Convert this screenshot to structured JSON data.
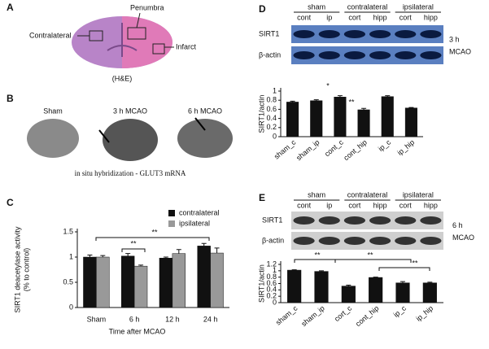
{
  "panel_a": {
    "label": "A",
    "annotations": [
      "Penumbra",
      "Contralateral",
      "Infarct",
      "(H&E)"
    ]
  },
  "panel_b": {
    "label": "B",
    "conditions": [
      "Sham",
      "3 h MCAO",
      "6 h MCAO"
    ],
    "caption": "in situ hybridization - GLUT3 mRNA"
  },
  "blots": [
    {
      "label": "D",
      "groups": [
        "sham",
        "contralateral",
        "ipsilateral"
      ],
      "lanes": [
        "cont",
        "ip",
        "cort",
        "hipp",
        "cort",
        "hipp"
      ],
      "rows": [
        "SIRT1",
        "β-actin"
      ],
      "condition": [
        "3 h",
        "MCAO"
      ]
    },
    {
      "label": "E",
      "groups": [
        "sham",
        "contralateral",
        "ipsilateral"
      ],
      "lanes": [
        "cont",
        "ip",
        "cort",
        "hipp",
        "cort",
        "hipp"
      ],
      "rows": [
        "SIRT1",
        "β-actin"
      ],
      "condition": [
        "6 h",
        "MCAO"
      ]
    }
  ],
  "chart_data": [
    {
      "type": "bar",
      "panel_label": "C",
      "ylabel": [
        "SIRT1 deacetylase activity",
        "(% to control)"
      ],
      "xlabel": "Time after MCAO",
      "categories": [
        "Sham",
        "6 h",
        "12 h",
        "24 h"
      ],
      "series": [
        {
          "name": "contralateral",
          "color": "#111111",
          "values": [
            1.0,
            1.02,
            0.98,
            1.22
          ],
          "errors": [
            0.04,
            0.05,
            0.02,
            0.05
          ]
        },
        {
          "name": "ipsilateral",
          "color": "#999999",
          "values": [
            1.0,
            0.82,
            1.07,
            1.08
          ],
          "errors": [
            0.03,
            0.02,
            0.08,
            0.1
          ]
        }
      ],
      "ylim": [
        0,
        1.5
      ],
      "yticks": [
        0,
        0.5,
        1,
        1.5
      ],
      "legend": "top-right",
      "annotations": [
        "**",
        "**"
      ]
    },
    {
      "type": "bar",
      "ylabel": "SIRT1/actin",
      "categories": [
        "sham_c",
        "sham_ip",
        "cont_c",
        "cont_hip",
        "ip_c",
        "ip_hip"
      ],
      "values": [
        0.76,
        0.79,
        0.87,
        0.59,
        0.88,
        0.63
      ],
      "errors": [
        0.02,
        0.02,
        0.03,
        0.03,
        0.02,
        0.01
      ],
      "color": "#111111",
      "ylim": [
        0,
        1
      ],
      "yticks": [
        0,
        0.2,
        0.4,
        0.6,
        0.8,
        1
      ],
      "annotations": [
        "*",
        "**"
      ]
    },
    {
      "type": "bar",
      "ylabel": "SIRT1/actin",
      "categories": [
        "sham_c",
        "sham_ip",
        "cort_c",
        "cont_hip",
        "ip_c",
        "ip_hip"
      ],
      "values": [
        1.02,
        0.98,
        0.52,
        0.79,
        0.62,
        0.62
      ],
      "errors": [
        0.01,
        0.02,
        0.03,
        0.01,
        0.04,
        0.02
      ],
      "color": "#111111",
      "ylim": [
        0,
        1.2
      ],
      "yticks": [
        0,
        0.2,
        0.4,
        0.6,
        0.8,
        1,
        1.2
      ],
      "annotations": [
        "**",
        "**",
        "**"
      ]
    }
  ]
}
